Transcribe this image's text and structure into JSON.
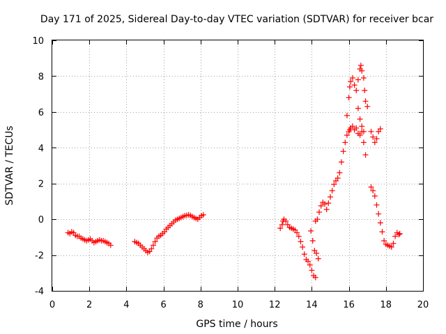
{
  "chart_data": {
    "type": "scatter",
    "title": "Day 171 of 2025, Sidereal Day-to-day VTEC variation (SDTVAR) for receiver bcar",
    "xlabel": "GPS time / hours",
    "ylabel": "SDTVAR / TECUs",
    "xlim": [
      0,
      20
    ],
    "ylim": [
      -4,
      10
    ],
    "xticks": [
      0,
      2,
      4,
      6,
      8,
      10,
      12,
      14,
      16,
      18,
      20
    ],
    "yticks": [
      -4,
      -2,
      0,
      2,
      4,
      6,
      8,
      10
    ],
    "grid": true,
    "marker": "+",
    "color": "#ff0000",
    "series": [
      {
        "name": "SDTVAR",
        "points": [
          [
            0.85,
            -0.75
          ],
          [
            0.95,
            -0.8
          ],
          [
            1.05,
            -0.7
          ],
          [
            1.15,
            -0.75
          ],
          [
            1.25,
            -0.9
          ],
          [
            1.35,
            -0.95
          ],
          [
            1.45,
            -0.95
          ],
          [
            1.55,
            -1.05
          ],
          [
            1.65,
            -1.1
          ],
          [
            1.75,
            -1.15
          ],
          [
            1.85,
            -1.2
          ],
          [
            1.95,
            -1.15
          ],
          [
            2.05,
            -1.1
          ],
          [
            2.15,
            -1.2
          ],
          [
            2.25,
            -1.3
          ],
          [
            2.35,
            -1.25
          ],
          [
            2.45,
            -1.2
          ],
          [
            2.55,
            -1.15
          ],
          [
            2.65,
            -1.2
          ],
          [
            2.75,
            -1.2
          ],
          [
            2.85,
            -1.25
          ],
          [
            2.95,
            -1.3
          ],
          [
            3.05,
            -1.35
          ],
          [
            3.15,
            -1.45
          ],
          [
            4.45,
            -1.25
          ],
          [
            4.55,
            -1.3
          ],
          [
            4.65,
            -1.35
          ],
          [
            4.75,
            -1.45
          ],
          [
            4.85,
            -1.55
          ],
          [
            4.95,
            -1.65
          ],
          [
            5.05,
            -1.75
          ],
          [
            5.15,
            -1.85
          ],
          [
            5.25,
            -1.8
          ],
          [
            5.35,
            -1.65
          ],
          [
            5.45,
            -1.45
          ],
          [
            5.55,
            -1.25
          ],
          [
            5.65,
            -1.05
          ],
          [
            5.75,
            -0.95
          ],
          [
            5.85,
            -0.9
          ],
          [
            5.95,
            -0.8
          ],
          [
            6.05,
            -0.7
          ],
          [
            6.15,
            -0.55
          ],
          [
            6.25,
            -0.45
          ],
          [
            6.35,
            -0.35
          ],
          [
            6.45,
            -0.25
          ],
          [
            6.55,
            -0.15
          ],
          [
            6.65,
            -0.05
          ],
          [
            6.75,
            0.0
          ],
          [
            6.85,
            0.05
          ],
          [
            6.95,
            0.1
          ],
          [
            7.05,
            0.15
          ],
          [
            7.15,
            0.2
          ],
          [
            7.25,
            0.22
          ],
          [
            7.35,
            0.25
          ],
          [
            7.45,
            0.22
          ],
          [
            7.55,
            0.15
          ],
          [
            7.65,
            0.1
          ],
          [
            7.75,
            0.05
          ],
          [
            7.85,
            0.0
          ],
          [
            7.95,
            0.1
          ],
          [
            8.05,
            0.2
          ],
          [
            8.15,
            0.25
          ],
          [
            12.3,
            -0.5
          ],
          [
            12.4,
            -0.3
          ],
          [
            12.45,
            -0.1
          ],
          [
            12.5,
            0.0
          ],
          [
            12.6,
            -0.1
          ],
          [
            12.7,
            -0.3
          ],
          [
            12.8,
            -0.45
          ],
          [
            12.9,
            -0.5
          ],
          [
            13.0,
            -0.55
          ],
          [
            13.1,
            -0.6
          ],
          [
            13.2,
            -0.75
          ],
          [
            13.3,
            -0.95
          ],
          [
            13.4,
            -1.25
          ],
          [
            13.5,
            -1.55
          ],
          [
            13.6,
            -1.95
          ],
          [
            13.7,
            -2.25
          ],
          [
            13.8,
            -2.35
          ],
          [
            13.9,
            -2.55
          ],
          [
            14.0,
            -2.85
          ],
          [
            14.1,
            -3.15
          ],
          [
            14.2,
            -3.25
          ],
          [
            13.95,
            -0.65
          ],
          [
            14.05,
            -1.2
          ],
          [
            14.15,
            -1.75
          ],
          [
            14.25,
            -1.9
          ],
          [
            14.35,
            -2.2
          ],
          [
            14.2,
            -0.1
          ],
          [
            14.3,
            0.0
          ],
          [
            14.4,
            0.4
          ],
          [
            14.5,
            0.75
          ],
          [
            14.6,
            0.95
          ],
          [
            14.7,
            0.85
          ],
          [
            14.8,
            0.55
          ],
          [
            14.9,
            0.9
          ],
          [
            15.0,
            1.25
          ],
          [
            15.1,
            1.6
          ],
          [
            15.2,
            1.95
          ],
          [
            15.3,
            2.15
          ],
          [
            15.4,
            2.3
          ],
          [
            15.5,
            2.6
          ],
          [
            15.6,
            3.2
          ],
          [
            15.7,
            3.8
          ],
          [
            15.8,
            4.3
          ],
          [
            15.9,
            4.7
          ],
          [
            16.0,
            4.9
          ],
          [
            16.05,
            5.0
          ],
          [
            16.1,
            5.1
          ],
          [
            16.2,
            5.2
          ],
          [
            16.3,
            5.0
          ],
          [
            16.4,
            5.1
          ],
          [
            16.5,
            4.8
          ],
          [
            16.6,
            4.7
          ],
          [
            16.7,
            4.9
          ],
          [
            16.8,
            4.3
          ],
          [
            16.9,
            3.6
          ],
          [
            15.9,
            5.8
          ],
          [
            16.0,
            6.8
          ],
          [
            16.05,
            7.4
          ],
          [
            16.1,
            7.7
          ],
          [
            16.2,
            7.9
          ],
          [
            16.3,
            7.5
          ],
          [
            16.4,
            7.2
          ],
          [
            16.5,
            7.8
          ],
          [
            16.6,
            8.4
          ],
          [
            16.65,
            8.6
          ],
          [
            16.7,
            8.3
          ],
          [
            16.8,
            7.9
          ],
          [
            16.85,
            7.2
          ],
          [
            16.9,
            6.6
          ],
          [
            17.0,
            6.3
          ],
          [
            16.5,
            6.2
          ],
          [
            16.6,
            5.6
          ],
          [
            16.7,
            5.2
          ],
          [
            16.8,
            4.9
          ],
          [
            17.2,
            4.9
          ],
          [
            17.3,
            4.6
          ],
          [
            17.4,
            4.3
          ],
          [
            17.5,
            4.5
          ],
          [
            17.6,
            4.9
          ],
          [
            17.7,
            5.05
          ],
          [
            17.2,
            1.8
          ],
          [
            17.3,
            1.6
          ],
          [
            17.4,
            1.3
          ],
          [
            17.5,
            0.8
          ],
          [
            17.6,
            0.3
          ],
          [
            17.7,
            -0.2
          ],
          [
            17.8,
            -0.7
          ],
          [
            17.9,
            -1.2
          ],
          [
            18.0,
            -1.4
          ],
          [
            18.1,
            -1.45
          ],
          [
            18.2,
            -1.5
          ],
          [
            18.3,
            -1.55
          ],
          [
            18.4,
            -1.35
          ],
          [
            18.5,
            -0.95
          ],
          [
            18.6,
            -0.75
          ],
          [
            18.7,
            -0.85
          ],
          [
            18.75,
            -0.8
          ]
        ]
      }
    ]
  }
}
